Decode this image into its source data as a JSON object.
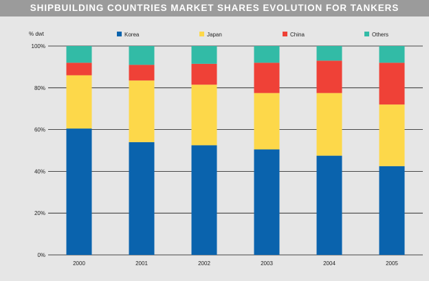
{
  "chart_data": {
    "type": "bar",
    "stacked": true,
    "title": "SHIPBUILDING COUNTRIES MARKET SHARES EVOLUTION FOR TANKERS",
    "ylabel": "% dwt",
    "xlabel": "",
    "categories": [
      "2000",
      "2001",
      "2002",
      "2003",
      "2004",
      "2005"
    ],
    "ylim": [
      0,
      100
    ],
    "yticks": [
      0,
      20,
      40,
      60,
      80,
      100
    ],
    "ytick_labels": [
      "0%",
      "20%",
      "40%",
      "60%",
      "80%",
      "100%"
    ],
    "grid": "horizontal",
    "legend_position": "top",
    "series": [
      {
        "name": "Korea",
        "color": "#0a63ad",
        "values": [
          60.5,
          54,
          52.5,
          50.5,
          47.5,
          42.5
        ]
      },
      {
        "name": "Japan",
        "color": "#fdd84a",
        "values": [
          25.5,
          29.5,
          29,
          27,
          30,
          29.5
        ]
      },
      {
        "name": "China",
        "color": "#ef4137",
        "values": [
          6,
          7.5,
          10,
          14.5,
          15.5,
          20
        ]
      },
      {
        "name": "Others",
        "color": "#32bba6",
        "values": [
          8,
          9,
          8.5,
          8,
          7,
          8
        ]
      }
    ]
  }
}
